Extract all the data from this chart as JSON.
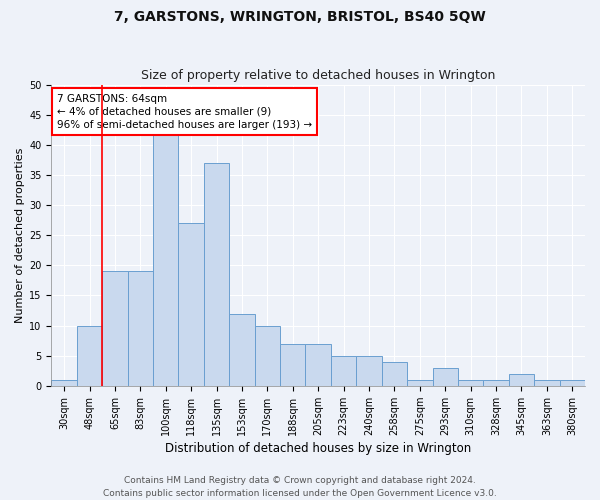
{
  "title": "7, GARSTONS, WRINGTON, BRISTOL, BS40 5QW",
  "subtitle": "Size of property relative to detached houses in Wrington",
  "xlabel": "Distribution of detached houses by size in Wrington",
  "ylabel": "Number of detached properties",
  "bin_labels": [
    "30sqm",
    "48sqm",
    "65sqm",
    "83sqm",
    "100sqm",
    "118sqm",
    "135sqm",
    "153sqm",
    "170sqm",
    "188sqm",
    "205sqm",
    "223sqm",
    "240sqm",
    "258sqm",
    "275sqm",
    "293sqm",
    "310sqm",
    "328sqm",
    "345sqm",
    "363sqm",
    "380sqm"
  ],
  "bar_heights": [
    1,
    10,
    19,
    19,
    42,
    27,
    37,
    12,
    10,
    7,
    7,
    5,
    5,
    4,
    1,
    3,
    1,
    1,
    2,
    1,
    1
  ],
  "bar_color": "#c9d9ee",
  "bar_edge_color": "#6a9fd0",
  "annotation_box_text": "7 GARSTONS: 64sqm\n← 4% of detached houses are smaller (9)\n96% of semi-detached houses are larger (193) →",
  "annotation_box_color": "red",
  "annotation_box_fill": "white",
  "red_line_bin": 2,
  "ylim": [
    0,
    50
  ],
  "yticks": [
    0,
    5,
    10,
    15,
    20,
    25,
    30,
    35,
    40,
    45,
    50
  ],
  "footer_line1": "Contains HM Land Registry data © Crown copyright and database right 2024.",
  "footer_line2": "Contains public sector information licensed under the Open Government Licence v3.0.",
  "bg_color": "#eef2f9",
  "plot_bg_color": "#eef2f9",
  "grid_color": "#ffffff",
  "title_fontsize": 10,
  "subtitle_fontsize": 9,
  "xlabel_fontsize": 8.5,
  "ylabel_fontsize": 8,
  "tick_fontsize": 7,
  "footer_fontsize": 6.5,
  "ann_fontsize": 7.5
}
